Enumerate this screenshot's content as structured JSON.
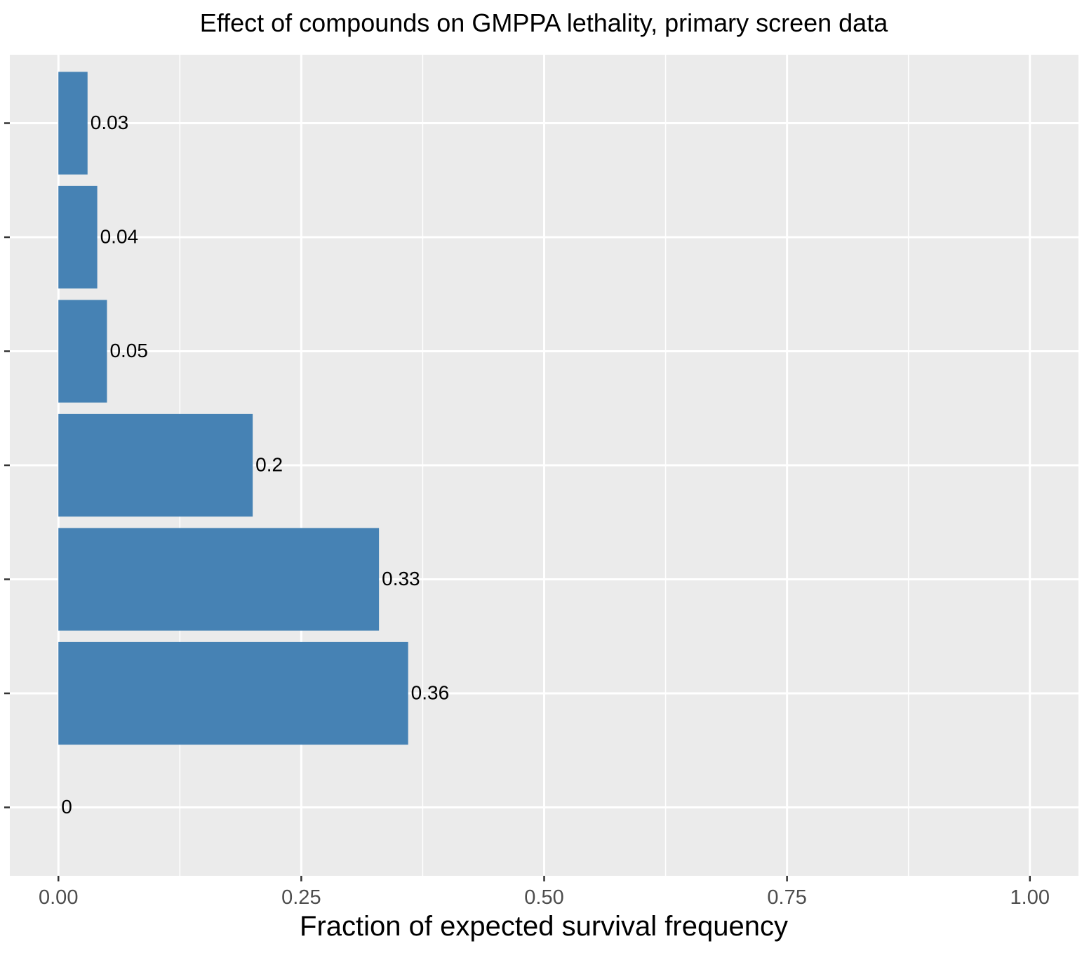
{
  "chart_data": {
    "type": "bar",
    "orientation": "horizontal",
    "title": "Effect of compounds on GMPPA lethality, primary screen data",
    "xlabel": "Fraction of expected survival frequency",
    "ylabel": "",
    "xlim": [
      -0.05,
      1.05
    ],
    "x_ticks": [
      0,
      0.25,
      0.5,
      0.75,
      1.0
    ],
    "x_tick_labels": [
      "0.00",
      "0.25",
      "0.50",
      "0.75",
      "1.00"
    ],
    "categories": [
      "",
      "",
      "",
      "",
      "",
      "",
      ""
    ],
    "values": [
      0,
      0.36,
      0.33,
      0.2,
      0.05,
      0.04,
      0.03
    ],
    "value_labels": [
      "0",
      "0.36",
      "0.33",
      "0.2",
      "0.05",
      "0.04",
      "0.03"
    ],
    "bar_color": "#4682b4",
    "panel_background": "#ebebeb",
    "grid": true,
    "legend": "none"
  }
}
